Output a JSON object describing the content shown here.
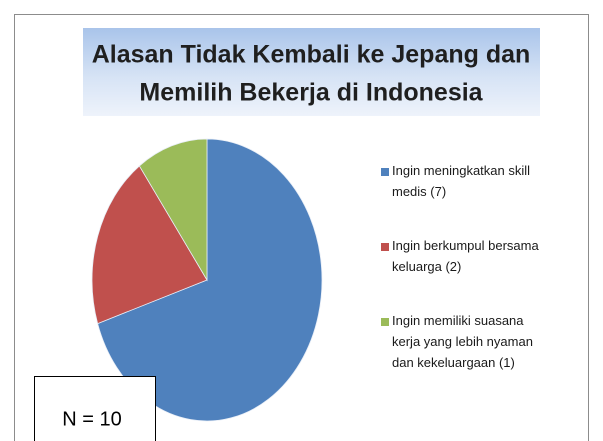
{
  "chart_data": {
    "type": "pie",
    "title": [
      "Alasan Tidak Kembali ke Jepang dan",
      "Memilih Bekerja di Indonesia"
    ],
    "categories": [
      "Ingin meningkatkan skill medis (7)",
      "Ingin berkumpul bersama keluarga (2)",
      "Ingin memiliki suasana kerja yang lebih nyaman dan kekeluargaan (1)"
    ],
    "values": [
      7,
      2,
      1
    ],
    "colors": [
      "#4f81bd",
      "#c0504d",
      "#9bbb59"
    ],
    "legend": "right",
    "annotation": "N = 10"
  }
}
